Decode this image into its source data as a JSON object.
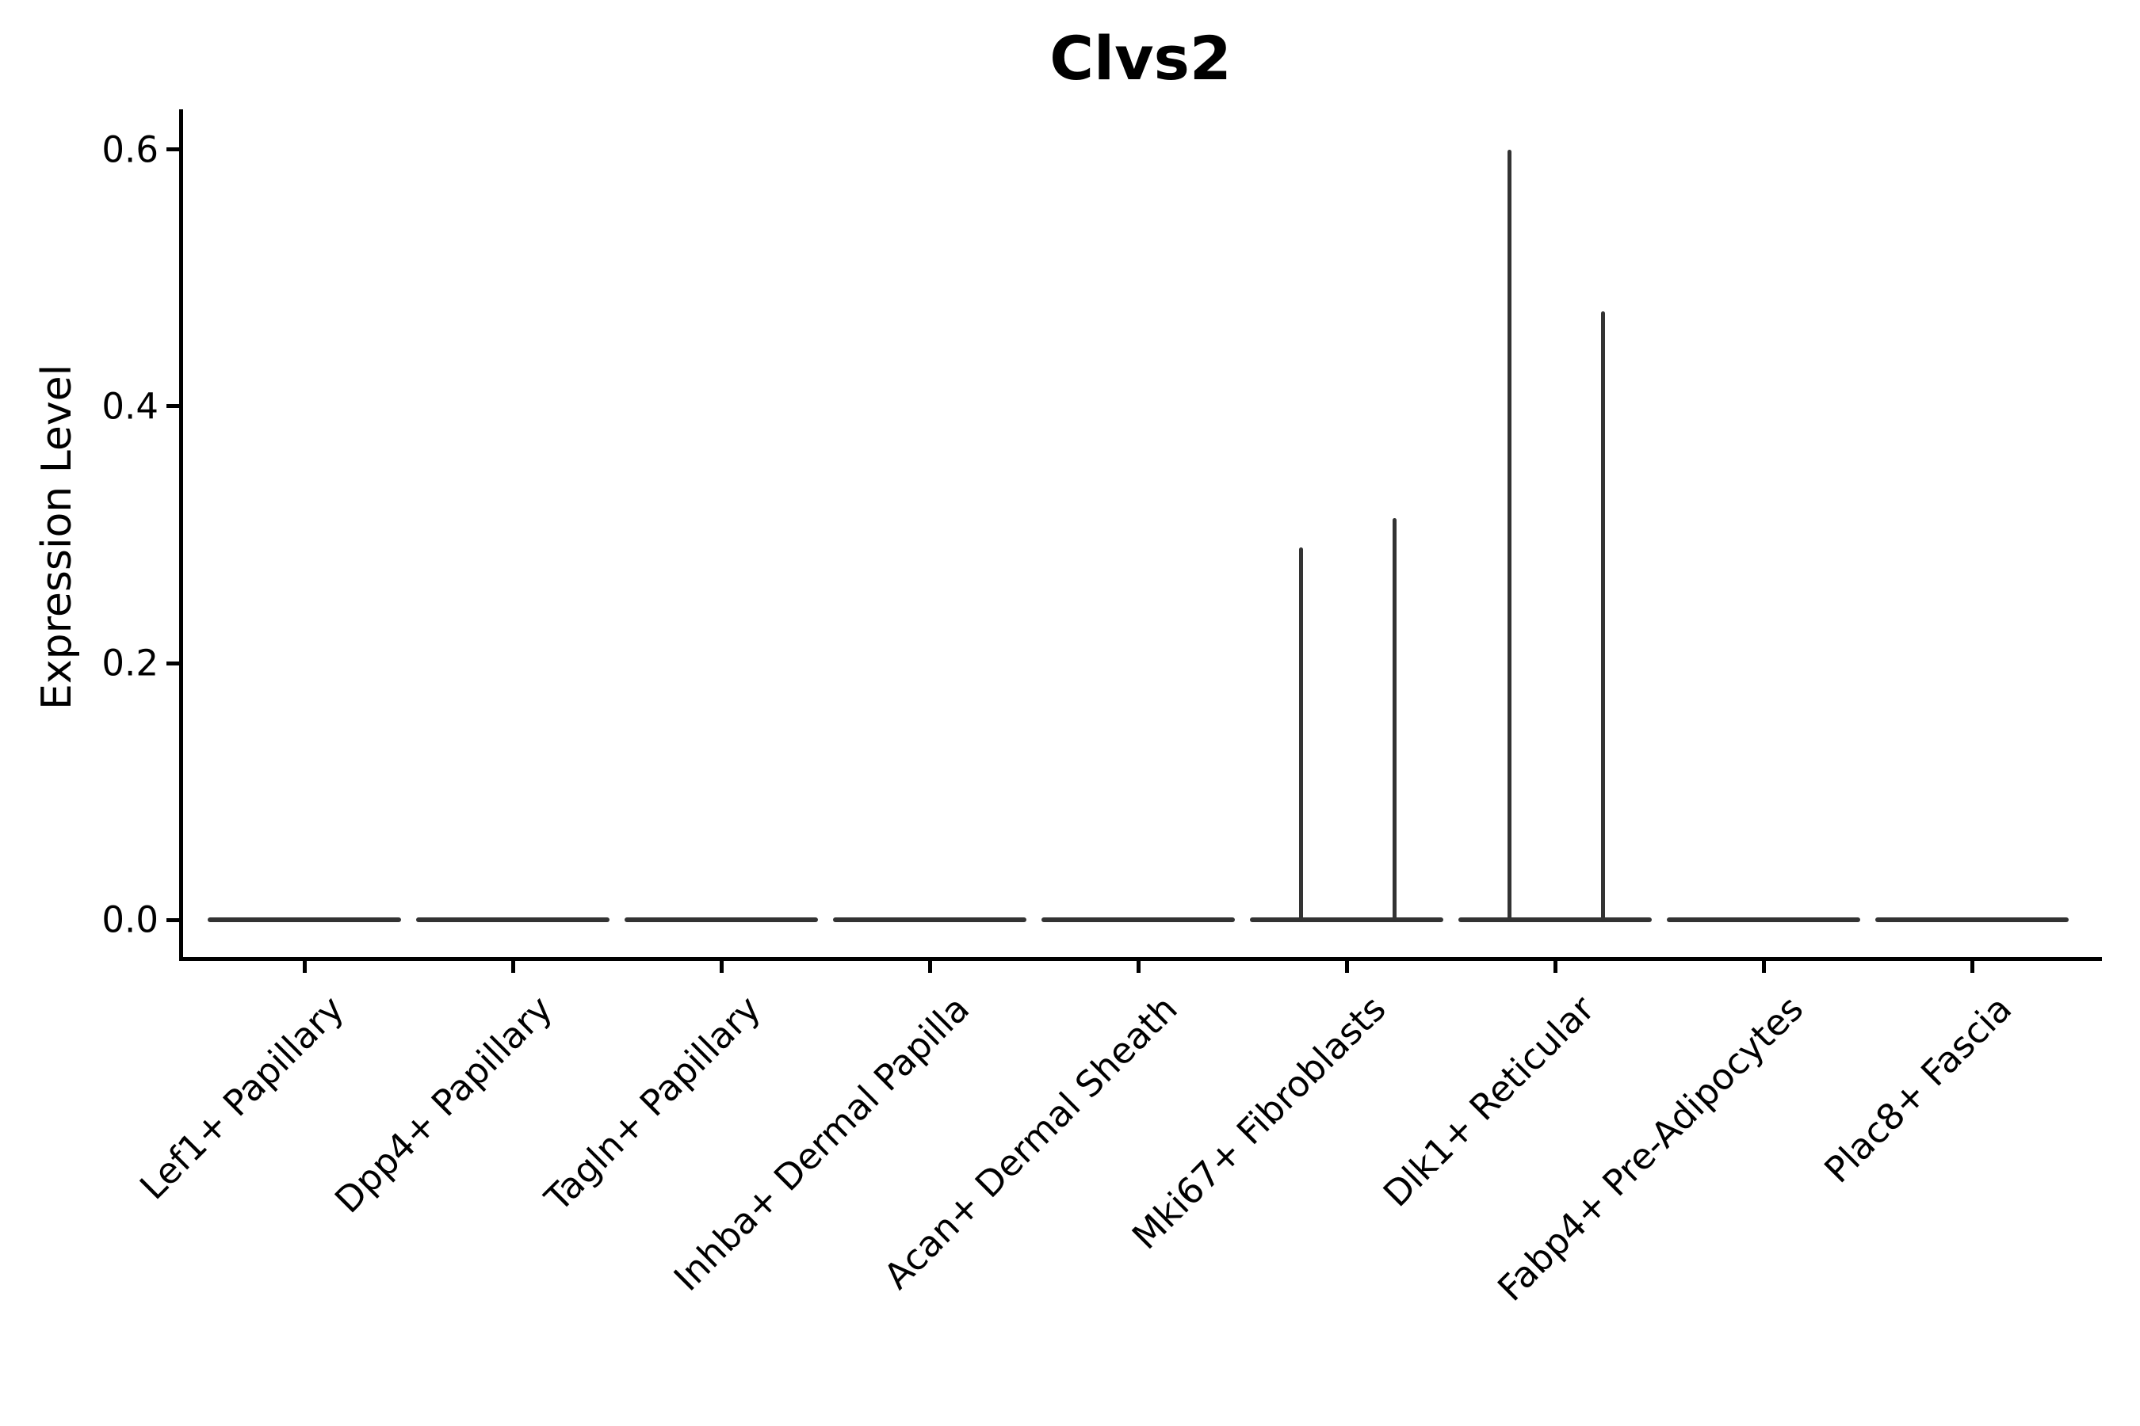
{
  "chart_data": {
    "type": "violin",
    "title": "Clvs2",
    "ylabel": "Expression Level",
    "xlabel": "",
    "categories": [
      "Lef1+ Papillary",
      "Dpp4+ Papillary",
      "Tagln+ Papillary",
      "Inhba+ Dermal Papilla",
      "Acan+ Dermal Sheath",
      "Mki67+ Fibroblasts",
      "Dlk1+ Reticular",
      "Fabp4+ Pre-Adipocytes",
      "Plac8+ Fascia"
    ],
    "ylim": [
      -0.03,
      0.63
    ],
    "yticks": [
      0,
      0.2,
      0.4,
      0.6
    ],
    "ytick_labels": [
      "0.0",
      "0.2",
      "0.4",
      "0.6"
    ],
    "grid": false,
    "legend": null,
    "violin_width": 0.93,
    "series": [
      {
        "category": "Lef1+ Papillary",
        "baseline": 0,
        "max": 0,
        "spikes": []
      },
      {
        "category": "Dpp4+ Papillary",
        "baseline": 0,
        "max": 0,
        "spikes": []
      },
      {
        "category": "Tagln+ Papillary",
        "baseline": 0,
        "max": 0,
        "spikes": []
      },
      {
        "category": "Inhba+ Dermal Papilla",
        "baseline": 0,
        "max": 0,
        "spikes": []
      },
      {
        "category": "Acan+ Dermal Sheath",
        "baseline": 0,
        "max": 0,
        "spikes": []
      },
      {
        "category": "Mki67+ Fibroblasts",
        "baseline": 0,
        "max": 0.313,
        "spikes": [
          {
            "offset": -0.22,
            "value": 0.29
          },
          {
            "offset": 0.23,
            "value": 0.313
          }
        ]
      },
      {
        "category": "Dlk1+ Reticular",
        "baseline": 0,
        "max": 0.6,
        "spikes": [
          {
            "offset": -0.22,
            "value": 0.6
          },
          {
            "offset": 0.23,
            "value": 0.474
          }
        ]
      },
      {
        "category": "Fabp4+ Pre-Adipocytes",
        "baseline": 0,
        "max": 0,
        "spikes": []
      },
      {
        "category": "Plac8+ Fascia",
        "baseline": 0,
        "max": 0,
        "spikes": []
      }
    ],
    "colors": {
      "axis": "#000000",
      "text": "#000000",
      "violin": "#333333",
      "background": "#ffffff"
    }
  }
}
